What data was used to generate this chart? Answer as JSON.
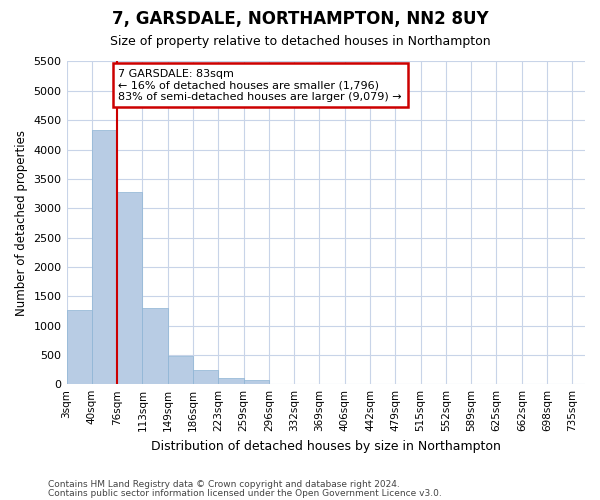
{
  "title": "7, GARSDALE, NORTHAMPTON, NN2 8UY",
  "subtitle": "Size of property relative to detached houses in Northampton",
  "xlabel": "Distribution of detached houses by size in Northampton",
  "ylabel": "Number of detached properties",
  "footnote1": "Contains HM Land Registry data © Crown copyright and database right 2024.",
  "footnote2": "Contains public sector information licensed under the Open Government Licence v3.0.",
  "bar_color": "#b8cce4",
  "bar_edgecolor": "#8db4d4",
  "vline_color": "#cc0000",
  "vline_x": 1.5,
  "annotation_text": "7 GARSDALE: 83sqm\n← 16% of detached houses are smaller (1,796)\n83% of semi-detached houses are larger (9,079) →",
  "annotation_box_color": "#ffffff",
  "annotation_box_edgecolor": "#cc0000",
  "ylim": [
    0,
    5500
  ],
  "yticks": [
    0,
    500,
    1000,
    1500,
    2000,
    2500,
    3000,
    3500,
    4000,
    4500,
    5000,
    5500
  ],
  "bar_values": [
    1270,
    4340,
    3280,
    1300,
    475,
    235,
    100,
    70,
    0,
    0,
    0,
    0,
    0,
    0,
    0,
    0,
    0,
    0,
    0,
    0
  ],
  "categories": [
    "3sqm",
    "40sqm",
    "76sqm",
    "113sqm",
    "149sqm",
    "186sqm",
    "223sqm",
    "259sqm",
    "296sqm",
    "332sqm",
    "369sqm",
    "406sqm",
    "442sqm",
    "479sqm",
    "515sqm",
    "552sqm",
    "589sqm",
    "625sqm",
    "662sqm",
    "698sqm",
    "735sqm"
  ],
  "background_color": "#ffffff",
  "grid_color": "#c8d4e8",
  "title_fontsize": 12,
  "subtitle_fontsize": 9,
  "ylabel_fontsize": 8.5,
  "xlabel_fontsize": 9,
  "ytick_fontsize": 8,
  "xtick_fontsize": 7.5
}
